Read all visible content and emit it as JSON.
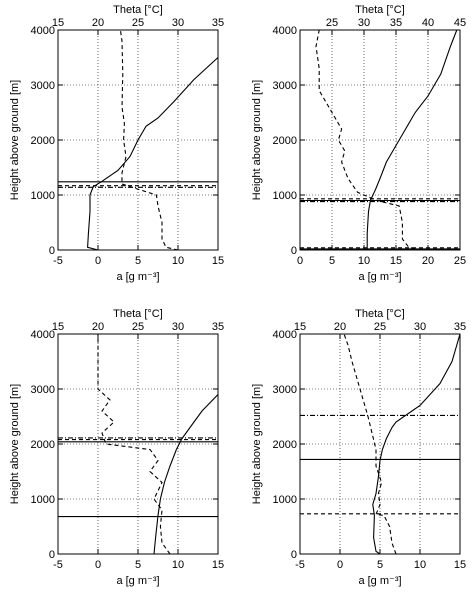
{
  "chart_data": [
    {
      "type": "line",
      "ylabel": "Height above ground [m]",
      "xlabel_bottom": "a [g m⁻³]",
      "xlabel_top": "Theta [°C]",
      "xlim_bottom": [
        -5,
        15
      ],
      "xticks_bottom": [
        -5,
        0,
        5,
        10,
        15
      ],
      "xlim_top": [
        15,
        35
      ],
      "xticks_top": [
        15,
        20,
        25,
        30,
        35
      ],
      "ylim": [
        0,
        4000
      ],
      "yticks": [
        0,
        1000,
        2000,
        3000,
        4000
      ],
      "grid": true,
      "series": [
        {
          "style": "solid",
          "axis": "top",
          "points": [
            [
              20,
              0
            ],
            [
              18.7,
              50
            ],
            [
              18.8,
              300
            ],
            [
              19,
              700
            ],
            [
              19,
              1000
            ],
            [
              19.4,
              1150
            ],
            [
              20.5,
              1250
            ],
            [
              22.5,
              1450
            ],
            [
              24,
              1700
            ],
            [
              25,
              2000
            ],
            [
              26,
              2250
            ],
            [
              27.5,
              2400
            ],
            [
              29.5,
              2700
            ],
            [
              32,
              3100
            ],
            [
              35,
              3500
            ]
          ]
        },
        {
          "style": "dashed",
          "axis": "bottom",
          "points": [
            [
              10,
              0
            ],
            [
              8.5,
              50
            ],
            [
              8,
              200
            ],
            [
              8,
              500
            ],
            [
              7.5,
              800
            ],
            [
              7.3,
              1000
            ],
            [
              4.5,
              1130
            ],
            [
              3,
              1200
            ],
            [
              3,
              1400
            ],
            [
              3.5,
              1700
            ],
            [
              3.2,
              2000
            ],
            [
              3.3,
              2300
            ],
            [
              3,
              2600
            ],
            [
              3.1,
              3200
            ],
            [
              3,
              3800
            ],
            [
              2.8,
              4000
            ]
          ]
        }
      ],
      "hlines": [
        {
          "style": "solid",
          "y": 1240
        },
        {
          "style": "dashed",
          "y": 1170
        },
        {
          "style": "dashdot",
          "y": 1140
        }
      ]
    },
    {
      "type": "line",
      "ylabel": "Height above ground [m]",
      "xlabel_bottom": "a [g m⁻³]",
      "xlabel_top": "Theta [°C]",
      "xlim_bottom": [
        0,
        25
      ],
      "xticks_bottom": [
        0,
        5,
        10,
        15,
        20,
        25
      ],
      "xlim_top": [
        20,
        45
      ],
      "xticks_top": [
        25,
        30,
        35,
        40,
        45
      ],
      "ylim": [
        0,
        4000
      ],
      "yticks": [
        0,
        1000,
        2000,
        3000,
        4000
      ],
      "grid": true,
      "series": [
        {
          "style": "solid",
          "axis": "top",
          "points": [
            [
              30.5,
              0
            ],
            [
              30.5,
              300
            ],
            [
              30.7,
              700
            ],
            [
              31,
              900
            ],
            [
              31.8,
              1100
            ],
            [
              32.5,
              1300
            ],
            [
              33.5,
              1600
            ],
            [
              35,
              1900
            ],
            [
              36.5,
              2200
            ],
            [
              38,
              2500
            ],
            [
              40,
              2800
            ],
            [
              42,
              3200
            ],
            [
              43.5,
              3700
            ],
            [
              44.5,
              4000
            ]
          ]
        },
        {
          "style": "dashed",
          "axis": "bottom",
          "points": [
            [
              19,
              0
            ],
            [
              17,
              50
            ],
            [
              16,
              200
            ],
            [
              16,
              500
            ],
            [
              15.5,
              800
            ],
            [
              12,
              900
            ],
            [
              9,
              1050
            ],
            [
              7.5,
              1300
            ],
            [
              6.5,
              1600
            ],
            [
              7,
              1800
            ],
            [
              6,
              2000
            ],
            [
              6.5,
              2200
            ],
            [
              5,
              2500
            ],
            [
              3,
              2900
            ],
            [
              3,
              3300
            ],
            [
              2.5,
              3700
            ],
            [
              3,
              4000
            ]
          ]
        }
      ],
      "hlines": [
        {
          "style": "solid",
          "y": 20
        },
        {
          "style": "dashed",
          "y": 40
        },
        {
          "style": "solid",
          "y": 900
        },
        {
          "style": "dashed",
          "y": 930
        },
        {
          "style": "dashdot",
          "y": 880
        }
      ]
    },
    {
      "type": "line",
      "ylabel": "Height above ground [m]",
      "xlabel_bottom": "a [g m⁻³]",
      "xlabel_top": "Theta [°C]",
      "xlim_bottom": [
        -5,
        15
      ],
      "xticks_bottom": [
        -5,
        0,
        5,
        10,
        15
      ],
      "xlim_top": [
        15,
        35
      ],
      "xticks_top": [
        15,
        20,
        25,
        30,
        35
      ],
      "ylim": [
        0,
        4000
      ],
      "yticks": [
        0,
        1000,
        2000,
        3000,
        4000
      ],
      "grid": true,
      "series": [
        {
          "style": "solid",
          "axis": "top",
          "points": [
            [
              27,
              0
            ],
            [
              27.2,
              300
            ],
            [
              27.5,
              700
            ],
            [
              27.8,
              1000
            ],
            [
              28.3,
              1300
            ],
            [
              29,
              1600
            ],
            [
              29.8,
              1900
            ],
            [
              30.5,
              2100
            ],
            [
              31.5,
              2300
            ],
            [
              33,
              2600
            ],
            [
              35,
              2900
            ]
          ]
        },
        {
          "style": "dashed",
          "axis": "bottom",
          "points": [
            [
              9,
              0
            ],
            [
              8,
              200
            ],
            [
              7.8,
              500
            ],
            [
              8,
              800
            ],
            [
              7,
              1000
            ],
            [
              8,
              1300
            ],
            [
              6.5,
              1500
            ],
            [
              7.5,
              1700
            ],
            [
              6.5,
              1900
            ],
            [
              1,
              2000
            ],
            [
              0.5,
              2200
            ],
            [
              2,
              2400
            ],
            [
              0.5,
              2600
            ],
            [
              1.5,
              2800
            ],
            [
              0,
              3000
            ],
            [
              0,
              3300
            ],
            [
              0,
              3700
            ],
            [
              0,
              4000
            ]
          ]
        }
      ],
      "hlines": [
        {
          "style": "solid",
          "y": 680
        },
        {
          "style": "solid",
          "y": 2040
        },
        {
          "style": "dashed",
          "y": 2080
        },
        {
          "style": "dashdot",
          "y": 2110
        }
      ]
    },
    {
      "type": "line",
      "ylabel": "Height above ground [m]",
      "xlabel_bottom": "a [g m⁻³]",
      "xlabel_top": "Theta [°C]",
      "xlim_bottom": [
        -5,
        15
      ],
      "xticks_bottom": [
        -5,
        0,
        5,
        10,
        15
      ],
      "xlim_top": [
        15,
        35
      ],
      "xticks_top": [
        15,
        20,
        25,
        30,
        35
      ],
      "ylim": [
        0,
        4000
      ],
      "yticks": [
        0,
        1000,
        2000,
        3000,
        4000
      ],
      "grid": true,
      "series": [
        {
          "style": "solid",
          "axis": "top",
          "points": [
            [
              25,
              0
            ],
            [
              24.5,
              50
            ],
            [
              24.2,
              300
            ],
            [
              24.3,
              700
            ],
            [
              24.1,
              900
            ],
            [
              24.5,
              1100
            ],
            [
              24.8,
              1400
            ],
            [
              25,
              1700
            ],
            [
              25.3,
              1900
            ],
            [
              25.8,
              2100
            ],
            [
              26.5,
              2300
            ],
            [
              27,
              2400
            ],
            [
              28,
              2500
            ],
            [
              30,
              2700
            ],
            [
              32.5,
              3100
            ],
            [
              34,
              3500
            ],
            [
              35,
              4000
            ]
          ]
        },
        {
          "style": "dashed",
          "axis": "bottom",
          "points": [
            [
              7,
              0
            ],
            [
              6.5,
              200
            ],
            [
              6.2,
              500
            ],
            [
              5.5,
              700
            ],
            [
              4.5,
              720
            ],
            [
              5,
              900
            ],
            [
              4.8,
              1100
            ],
            [
              5.2,
              1300
            ],
            [
              4.5,
              1600
            ],
            [
              4.5,
              1900
            ],
            [
              4,
              2200
            ],
            [
              3.5,
              2500
            ],
            [
              2.5,
              3000
            ],
            [
              1.5,
              3500
            ],
            [
              1,
              3800
            ],
            [
              0.5,
              4000
            ]
          ]
        }
      ],
      "hlines": [
        {
          "style": "solid",
          "y": 1720
        },
        {
          "style": "dashed",
          "y": 730
        },
        {
          "style": "dashdot",
          "y": 2520
        }
      ]
    }
  ]
}
